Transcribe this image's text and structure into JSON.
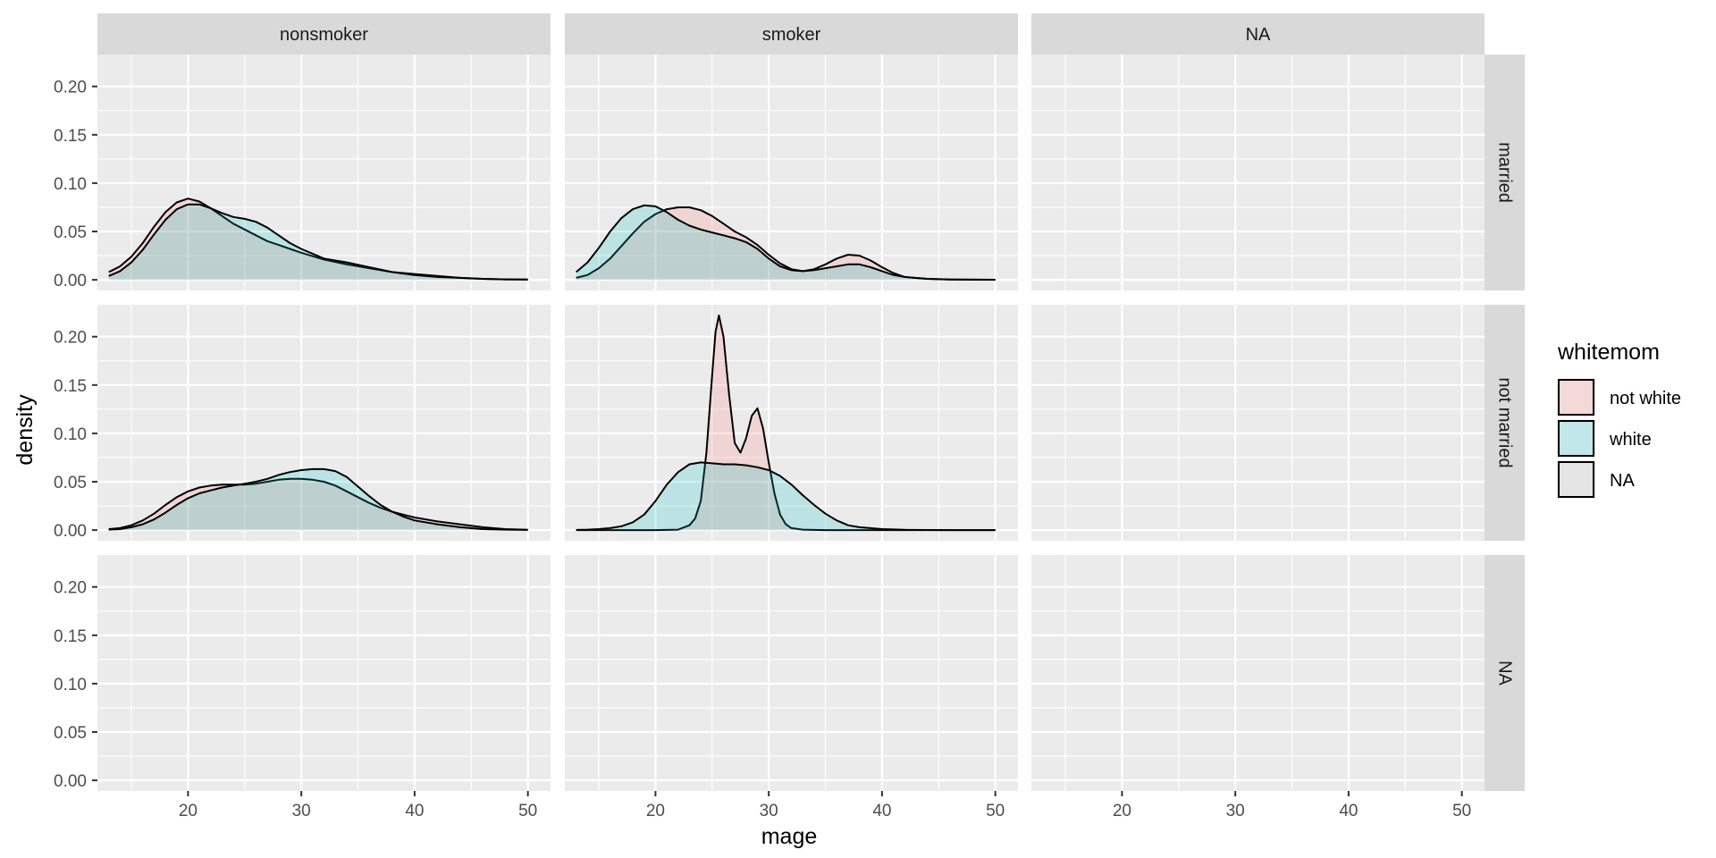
{
  "chart_data": {
    "type": "area",
    "subtype": "faceted density plot",
    "x_label": "mage",
    "y_label": "density",
    "x_range": [
      12,
      52
    ],
    "y_range": [
      -0.011,
      0.233
    ],
    "x_ticks": [
      20,
      30,
      40,
      50
    ],
    "x_tick_labels": [
      "20",
      "30",
      "40",
      "50"
    ],
    "y_ticks": [
      0,
      0.05,
      0.1,
      0.15,
      0.2
    ],
    "y_tick_labels": [
      "0.00",
      "0.05",
      "0.10",
      "0.15",
      "0.20"
    ],
    "grid": true,
    "col_facets": [
      "nonsmoker",
      "smoker",
      "NA"
    ],
    "row_facets": [
      "married",
      "not married",
      "NA"
    ],
    "legend": {
      "title": "whitemom",
      "position": "right",
      "entries": [
        {
          "label": "not white",
          "fill": "#f8766d"
        },
        {
          "label": "white",
          "fill": "#00bfc4"
        },
        {
          "label": "NA",
          "fill": "#b3b3b3"
        }
      ]
    },
    "fill_alpha": 0.2,
    "panels": [
      {
        "row": "married",
        "col": "nonsmoker",
        "series": [
          {
            "name": "not white",
            "x": [
              13,
              14,
              15,
              16,
              17,
              18,
              19,
              20,
              21,
              22,
              23,
              24,
              25,
              26,
              27,
              28,
              29,
              30,
              32,
              34,
              36,
              38,
              40,
              42,
              44,
              46,
              48,
              50
            ],
            "y": [
              0.008,
              0.014,
              0.024,
              0.038,
              0.055,
              0.07,
              0.08,
              0.084,
              0.081,
              0.074,
              0.066,
              0.058,
              0.052,
              0.046,
              0.04,
              0.036,
              0.032,
              0.028,
              0.021,
              0.016,
              0.012,
              0.008,
              0.006,
              0.004,
              0.002,
              0.001,
              0.0005,
              0.0003
            ]
          },
          {
            "name": "white",
            "x": [
              13,
              14,
              15,
              16,
              17,
              18,
              19,
              20,
              21,
              22,
              23,
              24,
              25,
              26,
              27,
              28,
              29,
              30,
              32,
              34,
              36,
              38,
              40,
              42,
              44,
              46,
              48,
              50
            ],
            "y": [
              0.004,
              0.009,
              0.018,
              0.031,
              0.047,
              0.062,
              0.073,
              0.078,
              0.078,
              0.074,
              0.069,
              0.065,
              0.063,
              0.06,
              0.054,
              0.046,
              0.038,
              0.032,
              0.022,
              0.018,
              0.013,
              0.008,
              0.005,
              0.003,
              0.002,
              0.001,
              0.0005,
              0.0003
            ]
          }
        ]
      },
      {
        "row": "married",
        "col": "smoker",
        "series": [
          {
            "name": "not white",
            "x": [
              13,
              14,
              15,
              16,
              17,
              18,
              19,
              20,
              21,
              22,
              23,
              24,
              25,
              26,
              27,
              28,
              29,
              30,
              31,
              32,
              33,
              34,
              35,
              36,
              37,
              38,
              39,
              40,
              41,
              42,
              44,
              46,
              48,
              50
            ],
            "y": [
              0.002,
              0.005,
              0.012,
              0.022,
              0.035,
              0.048,
              0.06,
              0.068,
              0.073,
              0.075,
              0.075,
              0.072,
              0.066,
              0.058,
              0.05,
              0.044,
              0.036,
              0.026,
              0.017,
              0.011,
              0.009,
              0.011,
              0.016,
              0.022,
              0.026,
              0.025,
              0.02,
              0.013,
              0.007,
              0.003,
              0.001,
              0.0004,
              0.0002,
              0.0001
            ]
          },
          {
            "name": "white",
            "x": [
              13,
              14,
              15,
              16,
              17,
              18,
              19,
              20,
              21,
              22,
              23,
              24,
              25,
              26,
              27,
              28,
              29,
              30,
              31,
              32,
              33,
              34,
              35,
              36,
              37,
              38,
              39,
              40,
              41,
              42,
              44,
              46,
              48,
              50
            ],
            "y": [
              0.008,
              0.018,
              0.033,
              0.05,
              0.064,
              0.073,
              0.077,
              0.076,
              0.07,
              0.062,
              0.056,
              0.052,
              0.049,
              0.046,
              0.043,
              0.039,
              0.032,
              0.022,
              0.014,
              0.01,
              0.009,
              0.01,
              0.012,
              0.014,
              0.016,
              0.016,
              0.013,
              0.009,
              0.005,
              0.003,
              0.001,
              0.0004,
              0.0002,
              0.0001
            ]
          }
        ]
      },
      {
        "row": "not married",
        "col": "nonsmoker",
        "series": [
          {
            "name": "not white",
            "x": [
              13,
              14,
              15,
              16,
              17,
              18,
              19,
              20,
              21,
              22,
              23,
              24,
              25,
              26,
              27,
              28,
              29,
              30,
              31,
              32,
              33,
              34,
              35,
              36,
              37,
              38,
              39,
              40,
              42,
              44,
              46,
              48,
              50
            ],
            "y": [
              0.001,
              0.002,
              0.005,
              0.01,
              0.017,
              0.026,
              0.034,
              0.04,
              0.044,
              0.046,
              0.047,
              0.047,
              0.047,
              0.048,
              0.05,
              0.052,
              0.053,
              0.053,
              0.052,
              0.05,
              0.046,
              0.04,
              0.034,
              0.028,
              0.023,
              0.019,
              0.016,
              0.013,
              0.009,
              0.006,
              0.003,
              0.001,
              0.0003
            ]
          },
          {
            "name": "white",
            "x": [
              13,
              14,
              15,
              16,
              17,
              18,
              19,
              20,
              21,
              22,
              23,
              24,
              25,
              26,
              27,
              28,
              29,
              30,
              31,
              32,
              33,
              34,
              35,
              36,
              37,
              38,
              39,
              40,
              42,
              44,
              46,
              48,
              50
            ],
            "y": [
              0.0005,
              0.001,
              0.003,
              0.006,
              0.011,
              0.018,
              0.026,
              0.033,
              0.038,
              0.041,
              0.044,
              0.046,
              0.048,
              0.05,
              0.053,
              0.057,
              0.06,
              0.062,
              0.063,
              0.063,
              0.061,
              0.055,
              0.045,
              0.035,
              0.026,
              0.019,
              0.014,
              0.01,
              0.006,
              0.003,
              0.001,
              0.0005,
              0.0002
            ]
          }
        ]
      },
      {
        "row": "not married",
        "col": "smoker",
        "series": [
          {
            "name": "not white",
            "x": [
              13,
              20,
              22,
              23,
              23.5,
              24,
              24.5,
              25,
              25.3,
              25.6,
              26,
              26.5,
              27,
              27.5,
              28,
              28.5,
              29,
              29.5,
              30,
              30.5,
              31,
              31.5,
              32,
              33,
              35,
              40,
              50
            ],
            "y": [
              0,
              0,
              0.0005,
              0.005,
              0.012,
              0.03,
              0.08,
              0.16,
              0.205,
              0.222,
              0.2,
              0.14,
              0.09,
              0.08,
              0.095,
              0.118,
              0.126,
              0.105,
              0.07,
              0.038,
              0.016,
              0.006,
              0.002,
              0.0005,
              0,
              0,
              0
            ]
          },
          {
            "name": "white",
            "x": [
              13,
              14,
              15,
              16,
              17,
              18,
              19,
              20,
              21,
              22,
              23,
              24,
              25,
              26,
              27,
              28,
              29,
              30,
              31,
              32,
              33,
              34,
              35,
              36,
              37,
              38,
              40,
              42,
              44,
              46,
              48,
              50
            ],
            "y": [
              0.0002,
              0.0005,
              0.001,
              0.002,
              0.004,
              0.008,
              0.016,
              0.03,
              0.047,
              0.06,
              0.068,
              0.07,
              0.069,
              0.068,
              0.068,
              0.067,
              0.065,
              0.062,
              0.056,
              0.047,
              0.036,
              0.026,
              0.017,
              0.01,
              0.005,
              0.003,
              0.001,
              0.0003,
              0.0001,
              0,
              0,
              0
            ]
          }
        ]
      }
    ]
  }
}
